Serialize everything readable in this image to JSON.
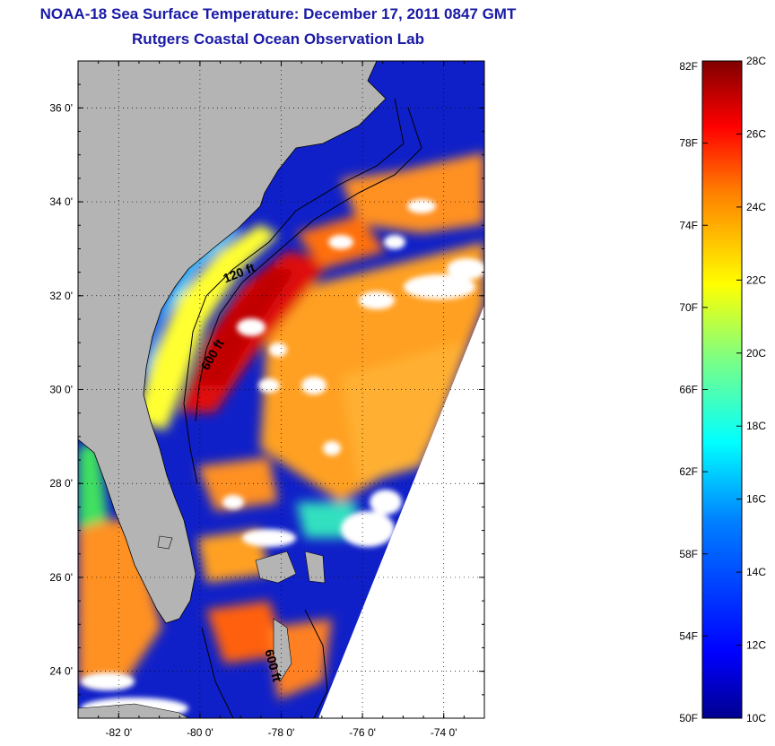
{
  "header": {
    "title": "NOAA-18 Sea Surface Temperature:  December 17, 2011 0847 GMT",
    "subtitle": "Rutgers Coastal Ocean Observation Lab"
  },
  "map": {
    "lat_ticks": [
      {
        "value": 36,
        "label": "36 0'"
      },
      {
        "value": 34,
        "label": "34 0'"
      },
      {
        "value": 32,
        "label": "32 0'"
      },
      {
        "value": 30,
        "label": "30 0'"
      },
      {
        "value": 28,
        "label": "28 0'"
      },
      {
        "value": 26,
        "label": "26 0'"
      },
      {
        "value": 24,
        "label": "24 0'"
      }
    ],
    "lon_ticks": [
      {
        "value": -82,
        "label": "-82 0'"
      },
      {
        "value": -80,
        "label": "-80 0'"
      },
      {
        "value": -78,
        "label": "-78 0'"
      },
      {
        "value": -76,
        "label": "-76 0'"
      },
      {
        "value": -74,
        "label": "-74 0'"
      }
    ],
    "lon_range": [
      -83,
      -73
    ],
    "lat_range": [
      23,
      37
    ],
    "grid": "dotted",
    "contour_labels": [
      {
        "text": "120 ft",
        "lon": -79.0,
        "lat": 32.4
      },
      {
        "text": "600 ft",
        "lon": -79.6,
        "lat": 30.7
      },
      {
        "text": "600 ft",
        "lon": -78.3,
        "lat": 24.1
      }
    ],
    "land_color": "#b4b4b4",
    "cloud_color": "#ffffff"
  },
  "colorbar": {
    "fahrenheit": [
      "82F",
      "78F",
      "74F",
      "70F",
      "66F",
      "62F",
      "58F",
      "54F",
      "50F"
    ],
    "celsius": [
      "28C",
      "26C",
      "24C",
      "22C",
      "20C",
      "18C",
      "16C",
      "14C",
      "12C",
      "10C"
    ],
    "colors": [
      "#800000",
      "#ff0000",
      "#ff8000",
      "#ffff00",
      "#80ff80",
      "#00ffff",
      "#0080ff",
      "#0000ff",
      "#00008f"
    ]
  }
}
